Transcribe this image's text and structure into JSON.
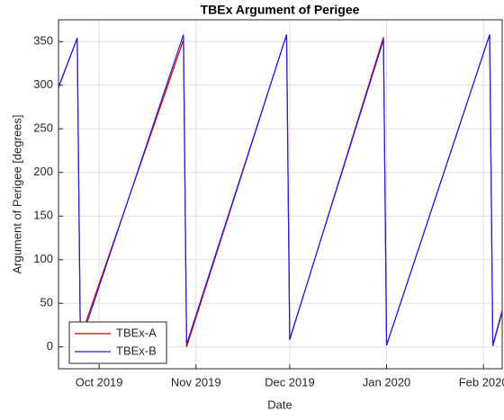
{
  "chart_data": {
    "type": "line",
    "title": "TBEx Argument of Perigee",
    "xlabel": "Date",
    "ylabel": "Argument of Perigee [degrees]",
    "x": [
      "2019-09-18",
      "2019-09-24",
      "2019-09-25",
      "2019-10-28",
      "2019-10-29",
      "2019-11-30",
      "2019-12-01",
      "2019-12-31",
      "2020-01-01",
      "2020-02-03",
      "2020-02-04",
      "2020-02-07"
    ],
    "series": [
      {
        "name": "TBEx-A",
        "color": "#d40000",
        "values": [
          298,
          354,
          10,
          352,
          0,
          358,
          8,
          355,
          2,
          358,
          2,
          42
        ]
      },
      {
        "name": "TBEx-B",
        "color": "#1f1fd6",
        "values": [
          297,
          354,
          5,
          358,
          3,
          358,
          9,
          352,
          2,
          358,
          1,
          40
        ]
      }
    ],
    "xlim": [
      "2019-09-18",
      "2020-02-07"
    ],
    "xticks": [
      {
        "value": "2019-10-01",
        "label": "Oct 2019"
      },
      {
        "value": "2019-11-01",
        "label": "Nov 2019"
      },
      {
        "value": "2019-12-01",
        "label": "Dec 2019"
      },
      {
        "value": "2020-01-01",
        "label": "Jan 2020"
      },
      {
        "value": "2020-02-01",
        "label": "Feb 2020"
      }
    ],
    "ylim": [
      -25,
      375
    ],
    "yticks": [
      0,
      50,
      100,
      150,
      200,
      250,
      300,
      350
    ],
    "grid": true,
    "legend": "lower-left"
  }
}
